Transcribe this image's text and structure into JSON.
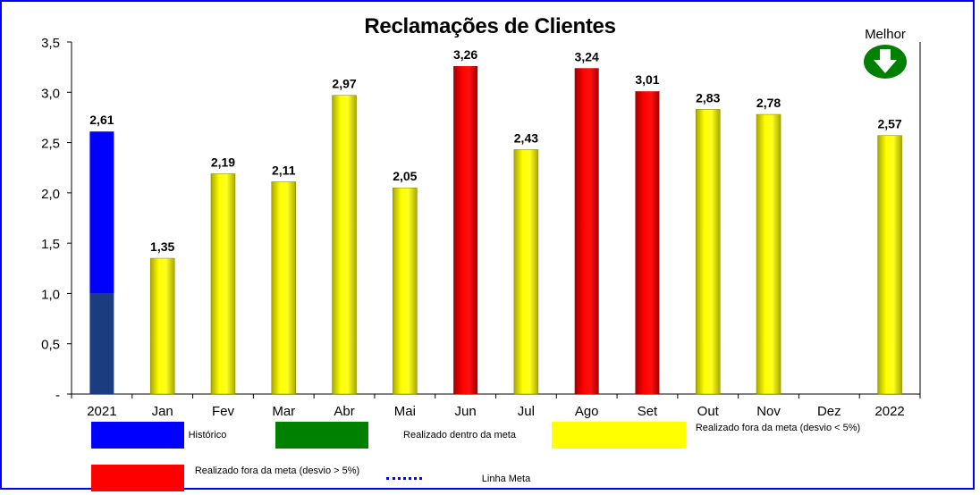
{
  "chart_data": {
    "type": "bar",
    "title": "Reclamações de Clientes",
    "categories": [
      "2021",
      "Jan",
      "Fev",
      "Mar",
      "Abr",
      "Mai",
      "Jun",
      "Jul",
      "Ago",
      "Set",
      "Out",
      "Nov",
      "Dez",
      "2022"
    ],
    "values": [
      2.61,
      1.35,
      2.19,
      2.11,
      2.97,
      2.05,
      3.26,
      2.43,
      3.24,
      3.01,
      2.83,
      2.78,
      null,
      2.57
    ],
    "value_labels": [
      "2,61",
      "1,35",
      "2,19",
      "2,11",
      "2,97",
      "2,05",
      "3,26",
      "2,43",
      "3,24",
      "3,01",
      "2,83",
      "2,78",
      "",
      "2,57"
    ],
    "status": [
      "historico",
      "fora_menor",
      "fora_menor",
      "fora_menor",
      "fora_menor",
      "fora_menor",
      "fora_maior",
      "fora_menor",
      "fora_maior",
      "fora_maior",
      "fora_menor",
      "fora_menor",
      "none",
      "fora_menor"
    ],
    "historic_lower_segment": 1.0,
    "ylim": [
      0,
      3.5
    ],
    "yticks": [
      0,
      0.5,
      1.0,
      1.5,
      2.0,
      2.5,
      3.0,
      3.5
    ],
    "ytick_labels": [
      "-",
      "0,5",
      "1,0",
      "1,5",
      "2,0",
      "2,5",
      "3,0",
      "3,5"
    ],
    "xlabel": "",
    "ylabel": "",
    "legend": [
      {
        "key": "historico",
        "label": "Histórico",
        "color": "#0000ff"
      },
      {
        "key": "dentro",
        "label": "Realizado dentro da meta",
        "color": "#008000"
      },
      {
        "key": "fora_menor",
        "label": "Realizado fora da meta (desvio < 5%)",
        "color": "#ffff00"
      },
      {
        "key": "fora_maior",
        "label": "Realizado fora da meta (desvio > 5%)",
        "color": "#ff0000"
      },
      {
        "key": "meta",
        "label": "Linha Meta",
        "color": "#0000ff"
      }
    ]
  },
  "indicator": {
    "label": "Melhor",
    "direction": "down",
    "icon": "down-arrow-icon",
    "color": "#008000"
  },
  "colors": {
    "historico_upper": "#0000ff",
    "historico_lower": "#1c3c82",
    "fora_menor": "#ffff00",
    "fora_maior": "#ff0000",
    "frame": "#0000ff"
  }
}
